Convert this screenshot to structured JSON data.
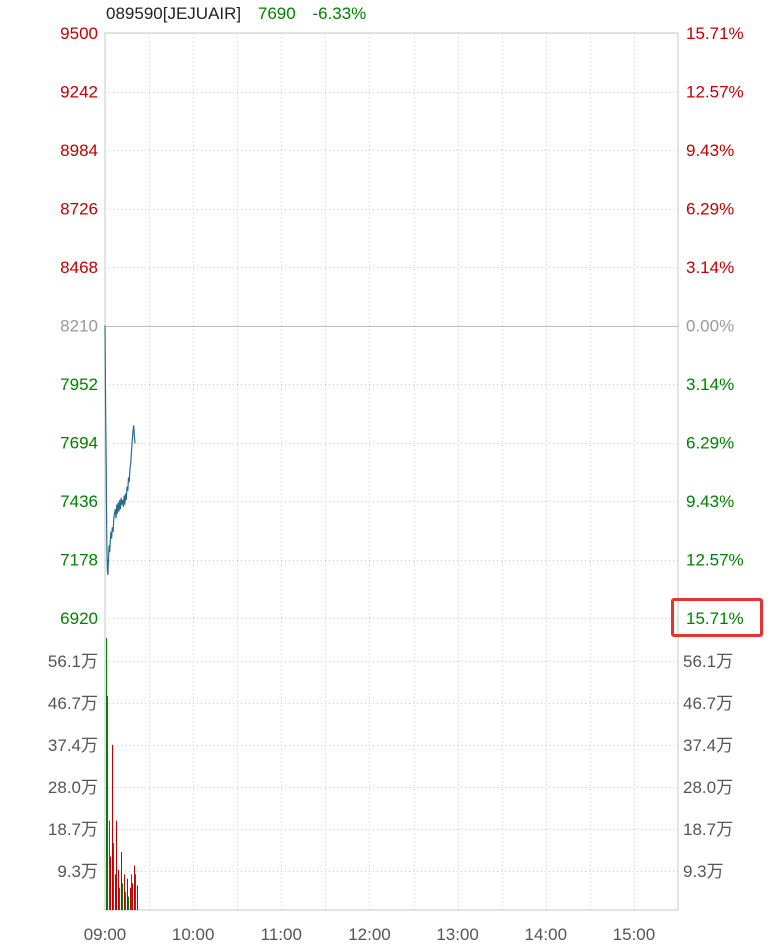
{
  "header": {
    "code": "089590[JEJUAIR]",
    "price": "7690",
    "change": "-6.33%"
  },
  "colors": {
    "up": "#c00000",
    "down": "#008000",
    "neutral": "#999999",
    "price_line": "#2a6b8f",
    "grid": "#c9c9c9",
    "highlight": "#e8322f"
  },
  "chart_data": [
    {
      "type": "line",
      "series": [
        {
          "values": [
            [
              0,
              8210
            ],
            [
              0.4,
              7850
            ],
            [
              0.8,
              7600
            ],
            [
              1.2,
              7250
            ],
            [
              1.6,
              7130
            ],
            [
              2,
              7110
            ],
            [
              2.4,
              7180
            ],
            [
              2.8,
              7240
            ],
            [
              3.2,
              7210
            ],
            [
              3.6,
              7260
            ],
            [
              4,
              7300
            ],
            [
              4.5,
              7270
            ],
            [
              5,
              7320
            ],
            [
              5.5,
              7300
            ],
            [
              6,
              7360
            ],
            [
              6.5,
              7380
            ],
            [
              7,
              7400
            ],
            [
              7.5,
              7360
            ],
            [
              8,
              7420
            ],
            [
              8.5,
              7380
            ],
            [
              9,
              7430
            ],
            [
              9.5,
              7390
            ],
            [
              10,
              7440
            ],
            [
              10.5,
              7400
            ],
            [
              11,
              7450
            ],
            [
              11.5,
              7420
            ],
            [
              12,
              7440
            ],
            [
              12.5,
              7410
            ],
            [
              13,
              7460
            ],
            [
              13.5,
              7420
            ],
            [
              14,
              7470
            ],
            [
              14.5,
              7440
            ],
            [
              15,
              7500
            ],
            [
              15.5,
              7480
            ],
            [
              16,
              7540
            ],
            [
              16.5,
              7520
            ],
            [
              17,
              7580
            ],
            [
              17.5,
              7600
            ],
            [
              18,
              7650
            ],
            [
              18.5,
              7700
            ],
            [
              19,
              7740
            ],
            [
              19.5,
              7770
            ],
            [
              20,
              7720
            ],
            [
              20.5,
              7690
            ]
          ]
        }
      ],
      "xlim": [
        0,
        390
      ],
      "x_ticks": [
        {
          "label": "09:00",
          "t": 0
        },
        {
          "label": "10:00",
          "t": 60
        },
        {
          "label": "11:00",
          "t": 120
        },
        {
          "label": "12:00",
          "t": 180
        },
        {
          "label": "13:00",
          "t": 240
        },
        {
          "label": "14:00",
          "t": 300
        },
        {
          "label": "15:00",
          "t": 360
        }
      ],
      "ylim": [
        6920,
        9500
      ],
      "y_ticks_left": [
        "9500",
        "9242",
        "8984",
        "8726",
        "8468",
        "8210",
        "7952",
        "7694",
        "7436",
        "7178",
        "6920"
      ],
      "y_ticks_right": [
        "15.71%",
        "12.57%",
        "9.43%",
        "6.29%",
        "3.14%",
        "0.00%",
        "3.14%",
        "6.29%",
        "9.43%",
        "12.57%",
        "15.71%"
      ],
      "reference_price": 8210,
      "grid": true
    },
    {
      "type": "bar",
      "ylim": [
        0,
        654500
      ],
      "y_ticks": [
        "56.1万",
        "46.7万",
        "37.4万",
        "28.0万",
        "18.7万",
        "9.3万"
      ],
      "bars": [
        {
          "t": 0,
          "v": 610000,
          "d": "down"
        },
        {
          "t": 1,
          "v": 480000,
          "d": "down"
        },
        {
          "t": 2,
          "v": 200000,
          "d": "down"
        },
        {
          "t": 3,
          "v": 120000,
          "d": "up"
        },
        {
          "t": 4,
          "v": 370000,
          "d": "up"
        },
        {
          "t": 5,
          "v": 150000,
          "d": "down"
        },
        {
          "t": 6,
          "v": 80000,
          "d": "up"
        },
        {
          "t": 7,
          "v": 200000,
          "d": "up"
        },
        {
          "t": 8,
          "v": 90000,
          "d": "up"
        },
        {
          "t": 9,
          "v": 50000,
          "d": "down"
        },
        {
          "t": 10,
          "v": 130000,
          "d": "up"
        },
        {
          "t": 11,
          "v": 60000,
          "d": "down"
        },
        {
          "t": 12,
          "v": 80000,
          "d": "up"
        },
        {
          "t": 13,
          "v": 40000,
          "d": "down"
        },
        {
          "t": 14,
          "v": 70000,
          "d": "up"
        },
        {
          "t": 15,
          "v": 30000,
          "d": "down"
        },
        {
          "t": 16,
          "v": 50000,
          "d": "up"
        },
        {
          "t": 17,
          "v": 80000,
          "d": "down"
        },
        {
          "t": 18,
          "v": 60000,
          "d": "up"
        },
        {
          "t": 19,
          "v": 100000,
          "d": "up"
        },
        {
          "t": 20,
          "v": 80000,
          "d": "down"
        },
        {
          "t": 21,
          "v": 55000,
          "d": "up"
        }
      ]
    }
  ]
}
